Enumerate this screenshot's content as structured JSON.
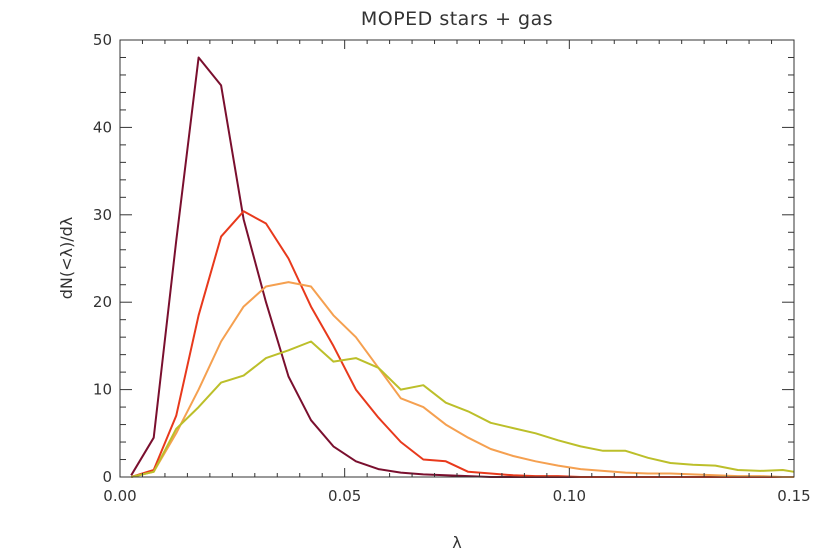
{
  "chart_data": {
    "type": "line",
    "title": "MOPED stars + gas",
    "xlabel": "λ",
    "ylabel": "dN(<λ)/dλ",
    "xlim": [
      0.0,
      0.15
    ],
    "ylim": [
      0,
      50
    ],
    "xticks": [
      0.0,
      0.05,
      0.1,
      0.15
    ],
    "xtick_labels": [
      "0.00",
      "0.05",
      "0.10",
      "0.15"
    ],
    "yticks": [
      0,
      10,
      20,
      30,
      40,
      50
    ],
    "ytick_labels": [
      "0",
      "10",
      "20",
      "30",
      "40",
      "50"
    ],
    "grid": false,
    "legend": "none",
    "x": [
      0.0025,
      0.0075,
      0.0125,
      0.0175,
      0.0225,
      0.0275,
      0.0325,
      0.0375,
      0.0425,
      0.0475,
      0.0525,
      0.0575,
      0.0625,
      0.0675,
      0.0725,
      0.0775,
      0.0825,
      0.0875,
      0.0925,
      0.0975,
      0.1025,
      0.1075,
      0.1125,
      0.1175,
      0.1225,
      0.1275,
      0.1325,
      0.1375,
      0.1425,
      0.1475,
      0.15
    ],
    "series": [
      {
        "color": "#7a0f2e",
        "values": [
          0.2,
          4.5,
          27.0,
          48.0,
          44.8,
          29.5,
          20.0,
          11.5,
          6.5,
          3.5,
          1.8,
          0.9,
          0.5,
          0.3,
          0.2,
          0.1,
          0.0,
          0.0,
          0.0,
          0.0,
          0.0,
          0.0,
          0.0,
          0.0,
          0.0,
          0.0,
          0.0,
          0.0,
          0.0,
          0.0,
          0.0
        ]
      },
      {
        "color": "#e8391c",
        "values": [
          0.0,
          0.8,
          7.0,
          18.5,
          27.5,
          30.4,
          29.0,
          25.0,
          19.5,
          15.0,
          10.0,
          6.8,
          4.0,
          2.0,
          1.8,
          0.6,
          0.4,
          0.2,
          0.1,
          0.1,
          0.0,
          0.0,
          0.0,
          0.0,
          0.0,
          0.0,
          0.0,
          0.0,
          0.0,
          0.0,
          0.0
        ]
      },
      {
        "color": "#f5a050",
        "values": [
          0.0,
          0.6,
          5.0,
          10.0,
          15.5,
          19.5,
          21.8,
          22.3,
          21.8,
          18.5,
          16.0,
          12.5,
          9.0,
          8.0,
          6.0,
          4.5,
          3.2,
          2.4,
          1.8,
          1.3,
          0.9,
          0.7,
          0.5,
          0.4,
          0.4,
          0.3,
          0.2,
          0.1,
          0.1,
          0.0,
          0.0
        ]
      },
      {
        "color": "#bcbf2a",
        "values": [
          0.0,
          0.6,
          5.5,
          8.0,
          10.8,
          11.6,
          13.6,
          14.5,
          15.5,
          13.2,
          13.6,
          12.5,
          10.0,
          10.5,
          8.5,
          7.5,
          6.2,
          5.6,
          5.0,
          4.2,
          3.5,
          3.0,
          3.0,
          2.2,
          1.6,
          1.4,
          1.3,
          0.8,
          0.7,
          0.8,
          0.6
        ]
      }
    ]
  }
}
